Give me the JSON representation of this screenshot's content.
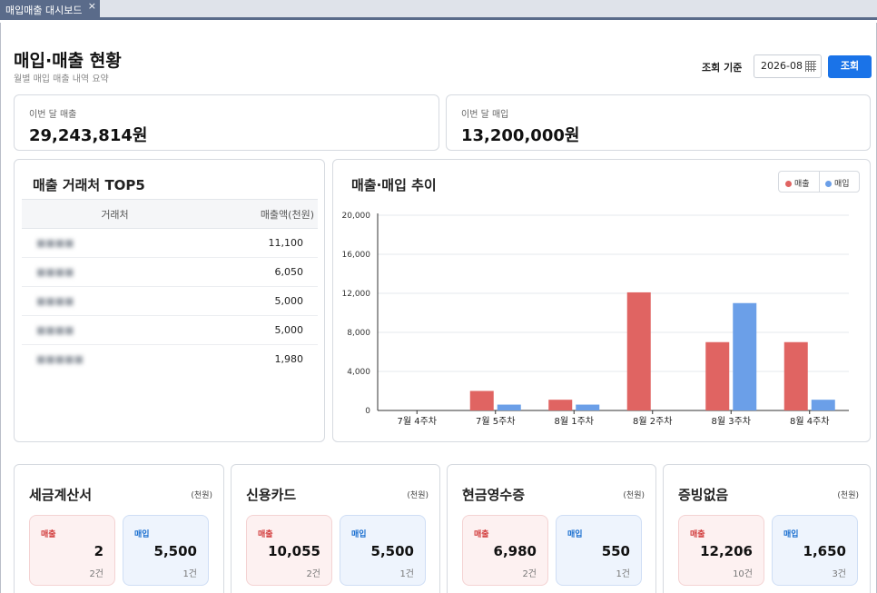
{
  "tab": {
    "label": "매입매출 대시보드",
    "close": "×"
  },
  "header": {
    "title": "매입·매출 현황",
    "subtitle": "월별 매입 매출 내역 요약"
  },
  "filter": {
    "label": "조회 기준",
    "month": "2026-08",
    "search_label": "조회"
  },
  "kpis": [
    {
      "label": "이번 달 매출",
      "value": "29,243,814원"
    },
    {
      "label": "이번 달 매입",
      "value": "13,200,000원"
    }
  ],
  "top5": {
    "title": "매출 거래처 TOP5",
    "columns": [
      "거래처",
      "매출액(천원)"
    ],
    "rows": [
      {
        "name": "■■■■",
        "amount": "11,100"
      },
      {
        "name": "■■■■",
        "amount": "6,050"
      },
      {
        "name": "■■■■",
        "amount": "5,000"
      },
      {
        "name": "■■■■",
        "amount": "5,000"
      },
      {
        "name": "■■■■■",
        "amount": "1,980"
      }
    ]
  },
  "trend": {
    "title": "매출·매입 추이",
    "legend": {
      "sales": "매출",
      "purchase": "매입"
    }
  },
  "colors": {
    "sales": "#e06462",
    "purchase": "#6b9fe8",
    "accent": "#1a73e8"
  },
  "chart_data": {
    "type": "bar",
    "categories": [
      "7월 4주차",
      "7월 5주차",
      "8월 1주차",
      "8월 2주차",
      "8월 3주차",
      "8월 4주차"
    ],
    "series": [
      {
        "name": "매출",
        "values": [
          0,
          2000,
          1100,
          12100,
          7000,
          7000
        ]
      },
      {
        "name": "매입",
        "values": [
          0,
          600,
          600,
          0,
          11000,
          1100
        ]
      }
    ],
    "y_ticks": [
      "0",
      "4,000",
      "8,000",
      "12,000",
      "16,000",
      "20,000"
    ],
    "ylim": [
      0,
      20000
    ],
    "grid": true,
    "legend_position": "top-right"
  },
  "breakdown": {
    "unit": "(천원)",
    "sales_label": "매출",
    "purchase_label": "매입",
    "cards": [
      {
        "title": "세금계산서",
        "sales": "2",
        "sales_count": "2건",
        "purchase": "5,500",
        "purchase_count": "1건"
      },
      {
        "title": "신용카드",
        "sales": "10,055",
        "sales_count": "2건",
        "purchase": "5,500",
        "purchase_count": "1건"
      },
      {
        "title": "현금영수증",
        "sales": "6,980",
        "sales_count": "2건",
        "purchase": "550",
        "purchase_count": "1건"
      },
      {
        "title": "증빙없음",
        "sales": "12,206",
        "sales_count": "10건",
        "purchase": "1,650",
        "purchase_count": "3건"
      }
    ]
  }
}
